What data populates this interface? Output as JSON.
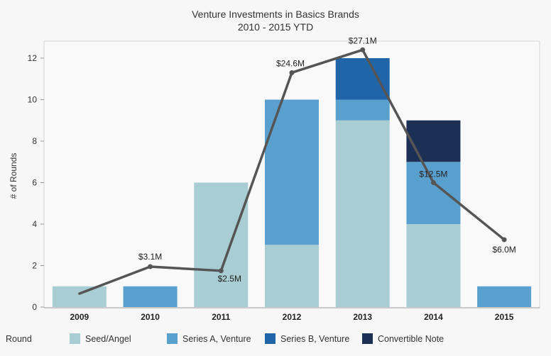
{
  "chart_data": {
    "type": "bar",
    "title": "Venture Investments in Basics Brands",
    "subtitle": "2010 - 2015 YTD",
    "ylabel": "# of Rounds",
    "xlabel": "",
    "ylim": [
      0,
      12.5
    ],
    "yticks": [
      0,
      2,
      4,
      6,
      8,
      10,
      12
    ],
    "categories": [
      "2009",
      "2010",
      "2011",
      "2012",
      "2013",
      "2014",
      "2015"
    ],
    "stacked": true,
    "series": [
      {
        "name": "Seed/Angel",
        "color": "#a8cdd3",
        "values": [
          1,
          0,
          6,
          3,
          9,
          4,
          0
        ]
      },
      {
        "name": "Series A, Venture",
        "color": "#5aa0cf",
        "values": [
          0,
          1,
          0,
          7,
          1,
          3,
          1
        ]
      },
      {
        "name": "Series B, Venture",
        "color": "#1f65a8",
        "values": [
          0,
          0,
          0,
          0,
          2,
          0,
          0
        ]
      },
      {
        "name": "Convertible Note",
        "color": "#1c2f55",
        "values": [
          0,
          0,
          0,
          0,
          0,
          2,
          0
        ]
      }
    ],
    "line": {
      "color": "#555555",
      "y_values": [
        0.65,
        1.95,
        1.75,
        11.3,
        12.4,
        6.0,
        3.25
      ],
      "labels": [
        "",
        "$3.1M",
        "$2.5M",
        "$24.6M",
        "$27.1M",
        "$12.5M",
        "$6.0M"
      ]
    },
    "legend": {
      "title": "Round",
      "placement": "bottom"
    },
    "grid": false
  }
}
